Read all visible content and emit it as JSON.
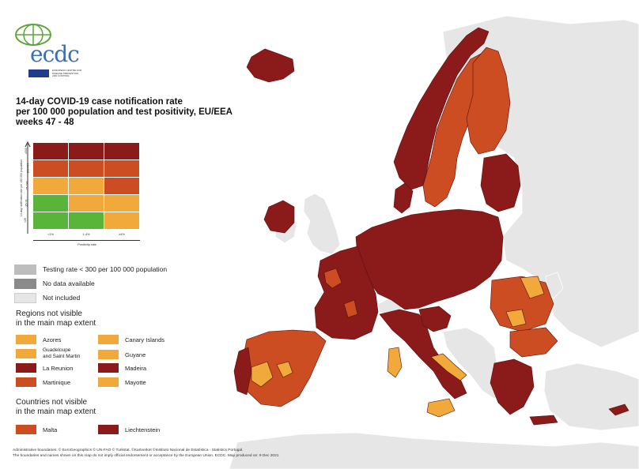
{
  "logo": {
    "name": "ecdc",
    "subtitle": "EUROPEAN CENTRE FOR DISEASE PREVENTION AND CONTROL"
  },
  "title": {
    "line1": "14-day COVID-19 case notification rate",
    "line2": "per 100 000 population and test positivity, EU/EEA",
    "line3": "weeks 47 - 48"
  },
  "matrix": {
    "y_axis_label": "14-day notification rate per 100 000 population",
    "x_axis_label": "Positivity rate",
    "x_ticks": [
      "<1%",
      "1-4%",
      "≥4%"
    ],
    "y_ticks": [
      "≥500",
      "200-499",
      "75-199",
      "25-74",
      "<25"
    ],
    "colors": [
      [
        "#8b1a1a",
        "#8b1a1a",
        "#8b1a1a"
      ],
      [
        "#cc4d22",
        "#cc4d22",
        "#cc4d22"
      ],
      [
        "#f0a93a",
        "#f0a93a",
        "#cc4d22"
      ],
      [
        "#58b53a",
        "#f0a93a",
        "#f0a93a"
      ],
      [
        "#58b53a",
        "#58b53a",
        "#f0a93a"
      ]
    ]
  },
  "legend": {
    "items": [
      {
        "label": "Testing rate < 300 per 100 000 population",
        "color": "#bdbdbd"
      },
      {
        "label": "No data available",
        "color": "#8a8a8a"
      },
      {
        "label": "Not included",
        "color": "#e6e6e6"
      }
    ]
  },
  "regions": {
    "heading_line1": "Regions not visible",
    "heading_line2": "in the main map extent",
    "items": [
      {
        "label": "Azores",
        "color": "#f0a93a"
      },
      {
        "label": "Canary Islands",
        "color": "#f0a93a"
      },
      {
        "label": "Guadeloupe and Saint Martin",
        "line1": "Guadeloupe",
        "line2": "and Saint Martin",
        "color": "#f0a93a"
      },
      {
        "label": "Guyane",
        "color": "#f0a93a"
      },
      {
        "label": "La Reunion",
        "color": "#8b1a1a"
      },
      {
        "label": "Madeira",
        "color": "#8b1a1a"
      },
      {
        "label": "Martinique",
        "color": "#cc4d22"
      },
      {
        "label": "Mayotte",
        "color": "#f0a93a"
      }
    ]
  },
  "countries": {
    "heading_line1": "Countries not visible",
    "heading_line2": "in the main map extent",
    "items": [
      {
        "label": "Malta",
        "color": "#cc4d22"
      },
      {
        "label": "Liechtenstein",
        "color": "#8b1a1a"
      }
    ]
  },
  "footer": {
    "line1": "Administrative boundaries: © EuroGeographics © UN-FAO © Turkstat. ©Kartverket ©Instituto Nacional de Estatística - Statistics Portugal.",
    "line2": "The boundaries and names shown on this map do not imply official endorsement or acceptance by the European Union. ECDC. Map produced on: 9 Dec 2021"
  },
  "palette": {
    "dark_red": "#8b1a1a",
    "red_orange": "#cc4d22",
    "orange": "#f0a93a",
    "green": "#58b53a",
    "not_included": "#e6e6e6",
    "sea": "#ffffff"
  }
}
